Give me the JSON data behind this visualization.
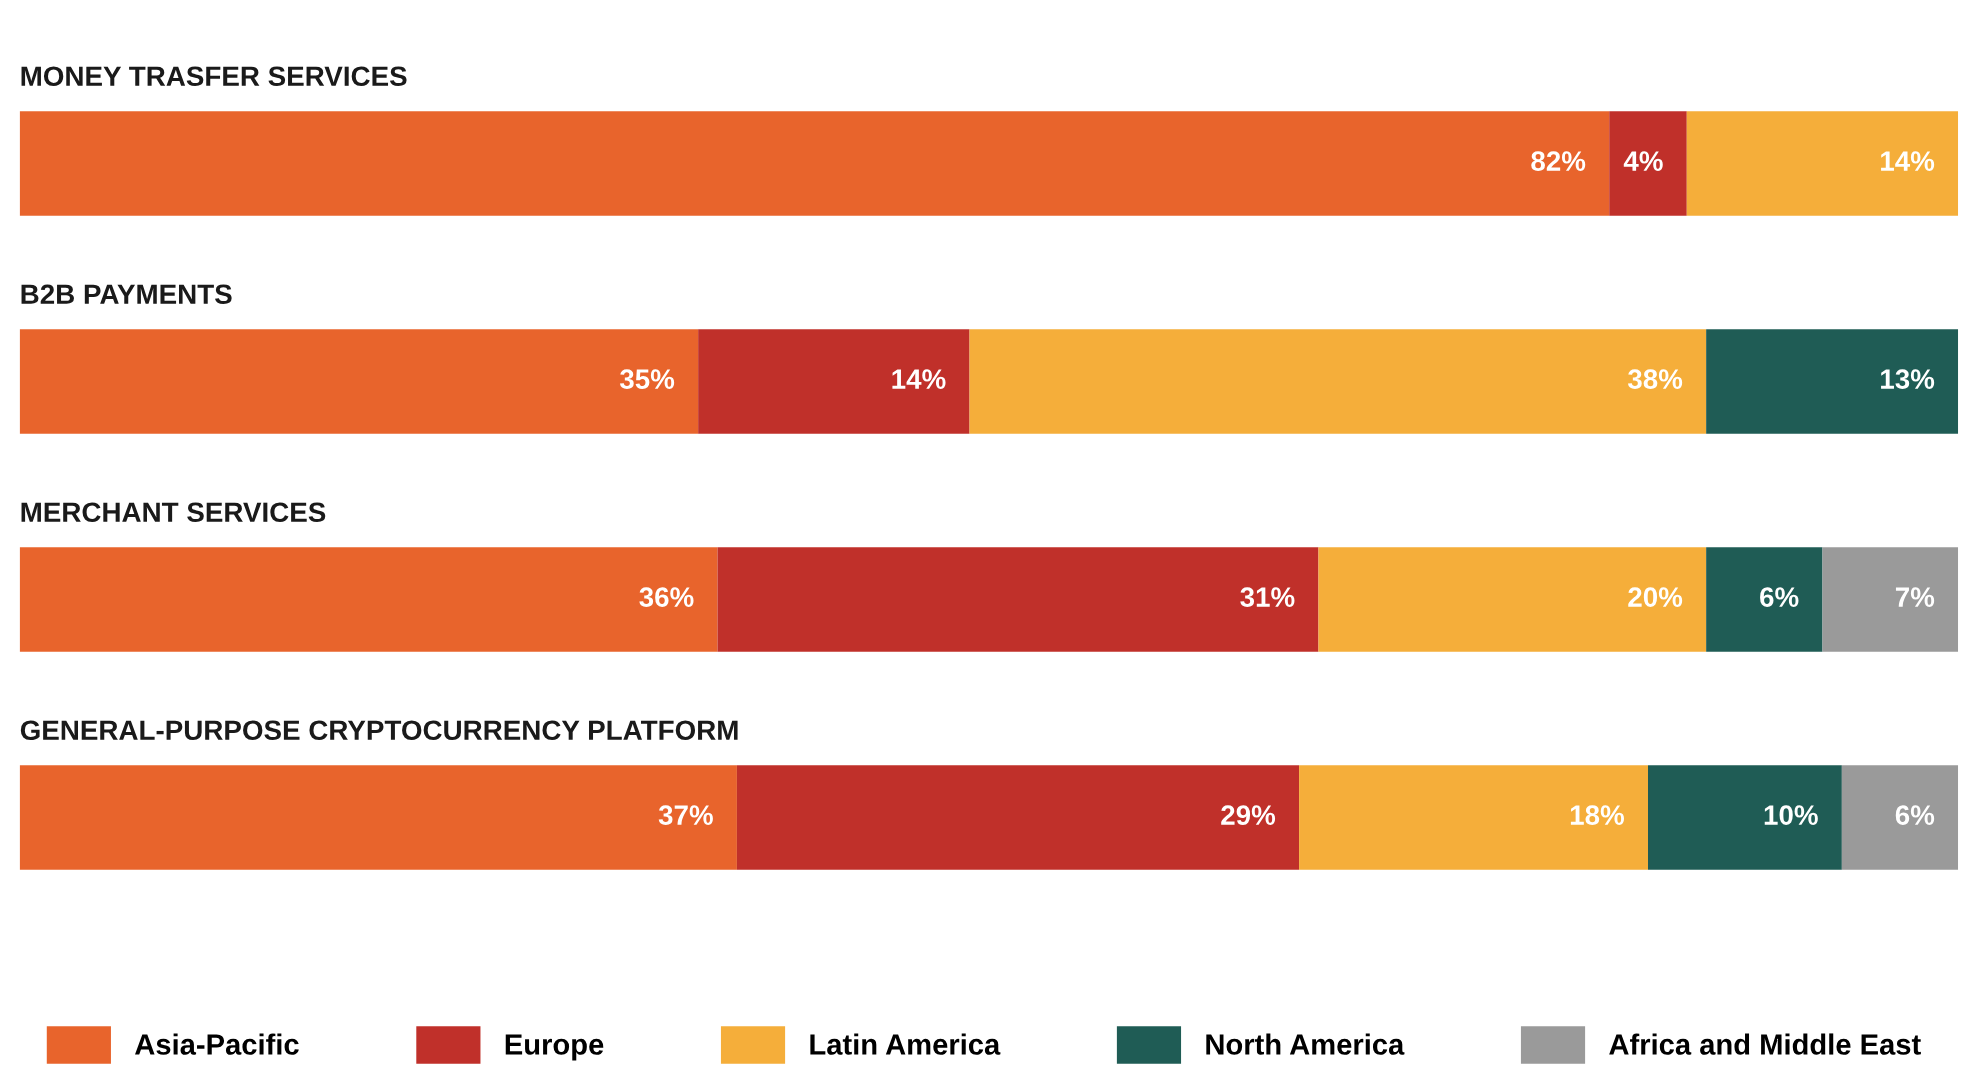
{
  "chart_data": {
    "type": "bar",
    "orientation": "horizontal",
    "stacked": true,
    "categories": [
      "MONEY TRASFER SERVICES",
      "B2B PAYMENTS",
      "MERCHANT SERVICES",
      "GENERAL-PURPOSE CRYPTOCURRENCY PLATFORM"
    ],
    "series": [
      {
        "name": "Asia-Pacific",
        "color": "#e8642c",
        "values": [
          82,
          35,
          36,
          37
        ],
        "value_labels": [
          "82%",
          "35%",
          "36%",
          "37%"
        ]
      },
      {
        "name": "Europe",
        "color": "#c0302a",
        "values": [
          4,
          14,
          31,
          29
        ],
        "value_labels": [
          "4%",
          "14%",
          "31%",
          "29%"
        ]
      },
      {
        "name": "Latin America",
        "color": "#f5ae3a",
        "values": [
          14,
          38,
          20,
          18
        ],
        "value_labels": [
          "14%",
          "38%",
          "20%",
          "18%"
        ]
      },
      {
        "name": "North America",
        "color": "#1f5c55",
        "values": [
          null,
          13,
          6,
          10
        ],
        "value_labels": [
          null,
          "13%",
          "6%",
          "10%"
        ]
      },
      {
        "name": "Africa and Middle East",
        "color": "#9a9a9a",
        "values": [
          null,
          null,
          7,
          6
        ],
        "value_labels": [
          null,
          null,
          "7%",
          "6%"
        ]
      }
    ],
    "xlim": [
      0,
      100
    ],
    "tick_labels": false,
    "legend": "bottom"
  }
}
